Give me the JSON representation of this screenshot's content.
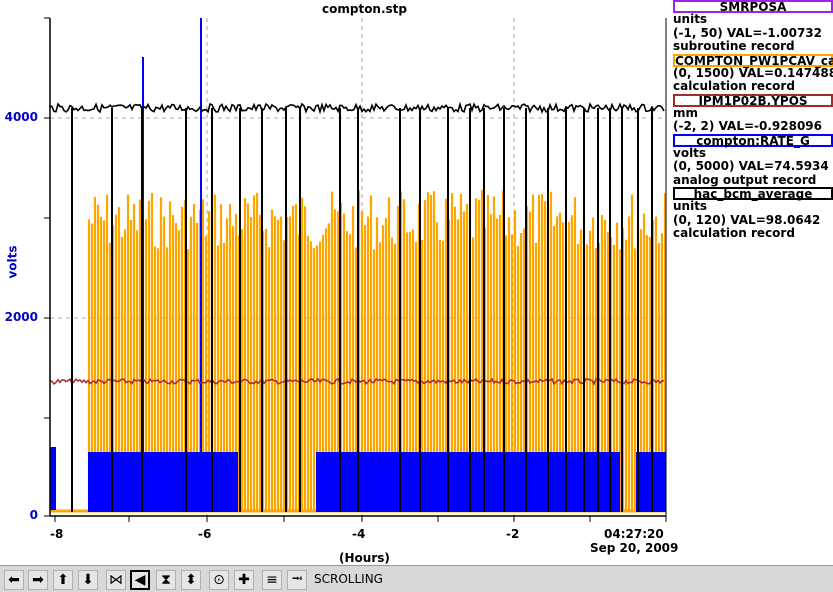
{
  "title": "compton.stp",
  "y_axis": {
    "label": "volts",
    "ticks": [
      "4000",
      "2000",
      "0"
    ]
  },
  "x_axis": {
    "label": "(Hours)",
    "ticks": [
      "-8",
      "-6",
      "-4",
      "-2"
    ],
    "time_label": "04:27:20",
    "date_label": "Sep 20, 2009"
  },
  "legend": [
    {
      "name": "SMRPOSA",
      "color": "#a020f0",
      "units": "units",
      "range_val": "(-1, 50) VAL=-1.00732",
      "record": "subroutine record"
    },
    {
      "name": "COMPTON_PW1PCAV_ca",
      "color": "#ffa500",
      "units": "",
      "range_val": "(0, 1500) VAL=0.147488",
      "record": "calculation record"
    },
    {
      "name": "IPM1P02B.YPOS",
      "color": "#a52a2a",
      "units": "mm",
      "range_val": "(-2, 2) VAL=-0.928096",
      "record": ""
    },
    {
      "name": "compton:RATE_G",
      "color": "#0000ff",
      "units": "volts",
      "range_val": "(0, 5000) VAL=74.5934",
      "record": "analog output record"
    },
    {
      "name": "hac_bcm_average",
      "color": "#000000",
      "units": "units",
      "range_val": "(0, 120) VAL=98.0642",
      "record": "calculation record"
    }
  ],
  "toolbar": {
    "icons": [
      "arrow-left-icon",
      "arrow-right-icon",
      "arrow-up-icon",
      "arrow-down-icon",
      "zoom-in-x-icon",
      "zoom-out-x-icon",
      "zoom-in-y-icon",
      "zoom-out-y-icon",
      "zoom-out-icon",
      "zoom-in-icon",
      "autoscale-icon",
      "scroll-mode-icon"
    ],
    "status": "SCROLLING"
  }
}
